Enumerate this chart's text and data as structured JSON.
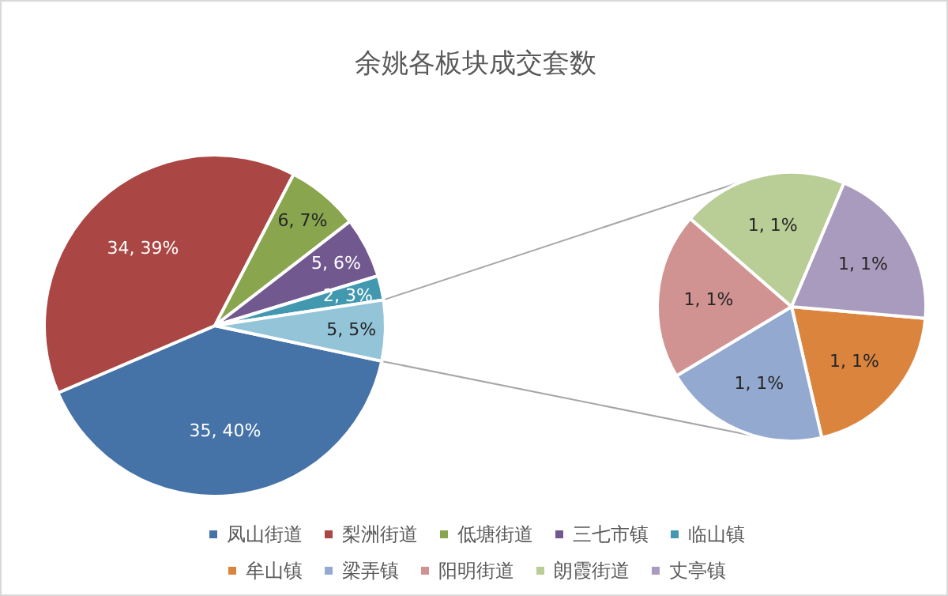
{
  "chart_data": [
    {
      "type": "pie",
      "title": "余姚各板块成交套数",
      "categories": [
        "凤山街道",
        "梨洲街道",
        "低塘街道",
        "三七市镇",
        "临山镇",
        null
      ],
      "values": [
        35,
        34,
        6,
        5,
        2,
        5
      ],
      "value_labels": [
        "35, 40%",
        "34, 39%",
        "6, 7%",
        "5, 6%",
        "2, 3%",
        "5, 5%"
      ],
      "colors": [
        "#4572a7",
        "#aa4643",
        "#89a54e",
        "#71588f",
        "#4198af",
        "#93c4d8"
      ],
      "legend": "bottom"
    },
    {
      "type": "pie",
      "categories": [
        "牟山镇",
        "梁弄镇",
        "阳明街道",
        "朗霞街道",
        "丈亭镇"
      ],
      "values": [
        1,
        1,
        1,
        1,
        1
      ],
      "value_labels": [
        "1, 1%",
        "1, 1%",
        "1, 1%",
        "1, 1%",
        "1, 1%"
      ],
      "colors": [
        "#db843d",
        "#93a9cf",
        "#d19392",
        "#b9cd96",
        "#a99bbd"
      ],
      "legend": "bottom"
    }
  ]
}
